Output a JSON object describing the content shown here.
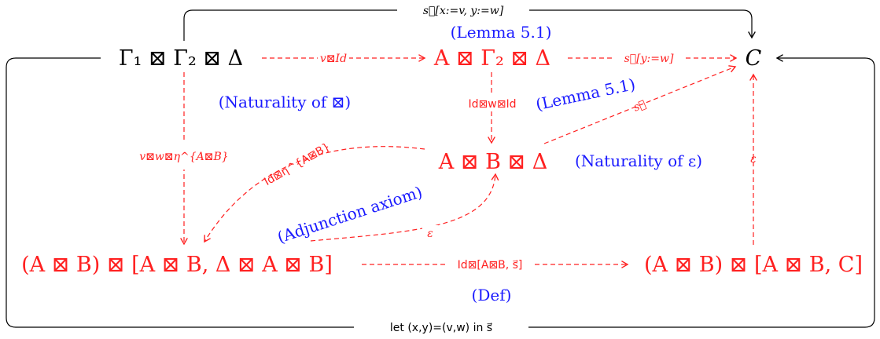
{
  "colors": {
    "red": "#ff2020",
    "blue": "#1a1aff",
    "black": "#000000"
  },
  "nodes": {
    "top_left": "Γ₁ ⊠ Γ₂ ⊠ Δ",
    "top_mid": "A ⊠ Γ₂ ⊠ Δ",
    "C": "C",
    "mid": "A ⊠ B ⊠ Δ",
    "bottom_left": "(A ⊠ B) ⊠ [A ⊠ B, Δ ⊠ A ⊠ B]",
    "bottom_right": "(A ⊠ B) ⊠ [A ⊠ B, C]"
  },
  "arrows": {
    "top_loop": "s⃗[x:=v, y:=w]",
    "v_id": "v⊠Id",
    "s_yw": "s⃗[y:=w]",
    "id_w_id": "Id⊠w⊠Id",
    "s_diag": "s⃗",
    "vw_eta": "v⊠w⊠η^{A⊠B}",
    "id_eta": "Id⊠η^{A⊠B}",
    "eps_curve": "ε",
    "eps_up": "ε",
    "bottom_arrow": "Id⊠[A⊠B, s⃗]",
    "bottom_loop": "let (x,y)=(v,w) in s⃗"
  },
  "annotations": {
    "lemma_top": "(Lemma 5.1)",
    "naturality_box": "(Naturality of ⊠)",
    "lemma_diag": "(Lemma 5.1)",
    "naturality_eps": "(Naturality of ε)",
    "adjunction": "(Adjunction axiom)",
    "def": "(Def)"
  }
}
